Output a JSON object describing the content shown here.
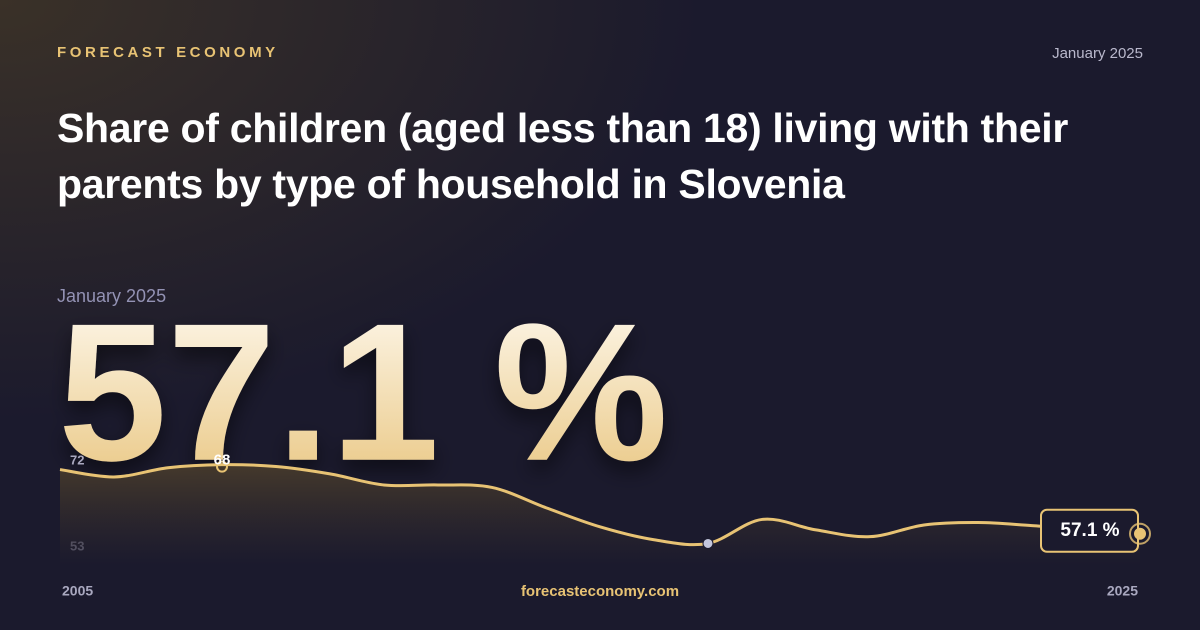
{
  "brand": "FORECAST ECONOMY",
  "date": "January 2025",
  "footer": "forecasteconomy.com",
  "chart_data": {
    "type": "line",
    "title": "Share of children (aged less than 18) living with their parents by type of household in Slovenia",
    "headline_date": "January 2025",
    "x": [
      2005,
      2006,
      2007,
      2008,
      2009,
      2010,
      2011,
      2012,
      2013,
      2014,
      2015,
      2016,
      2017,
      2018,
      2019,
      2020,
      2021,
      2022,
      2023,
      2024,
      2025
    ],
    "values": [
      67.2,
      66.0,
      67.5,
      68,
      67.7,
      66.5,
      64.7,
      64.7,
      64.3,
      61.0,
      57.9,
      55.8,
      55.2,
      59.1,
      57.4,
      56.3,
      58.2,
      58.6,
      58.1,
      57.5,
      57.1
    ],
    "value_labels": [
      null,
      null,
      null,
      "68",
      null,
      null,
      null,
      null,
      null,
      null,
      null,
      null,
      null,
      null,
      null,
      null,
      null,
      null,
      null,
      null,
      "57.1 %"
    ],
    "color": "#e8c374",
    "xlim": [
      2005,
      2025
    ],
    "xticks": [
      2005,
      2025
    ],
    "ylim": [
      53,
      72
    ],
    "yticks": [
      53,
      72
    ],
    "grid": false
  }
}
